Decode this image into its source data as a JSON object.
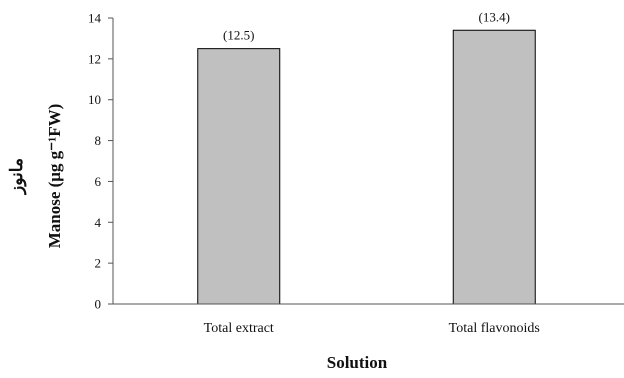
{
  "chart_data": {
    "type": "bar",
    "categories": [
      "Total extract",
      "Total flavonoids"
    ],
    "values": [
      12.5,
      13.4
    ],
    "data_labels": [
      "(12.5)",
      "(13.4)"
    ],
    "title": "",
    "xlabel": "Solution",
    "ylabel": "Manose (μg g⁻¹FW)",
    "ylabel_secondary": "مانوز",
    "ylim": [
      0,
      14
    ],
    "yticks": [
      0,
      2,
      4,
      6,
      8,
      10,
      12,
      14
    ],
    "bar_color": "#c0c0c0",
    "bar_edge_color": "#000000",
    "grid": false,
    "legend": "none"
  }
}
